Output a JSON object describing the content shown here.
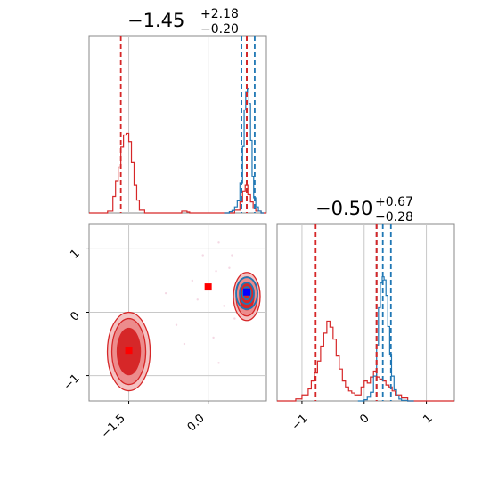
{
  "chart_data": {
    "type": "corner",
    "grid": true,
    "colors": {
      "red": "#d62728",
      "blue": "#1f77b4",
      "marker_red": "#ff0000",
      "marker_blue": "#0000ff",
      "grid": "#c8c8c8",
      "frame": "#888888"
    },
    "panels": {
      "hist_x": {
        "title": {
          "value": "−1.45",
          "sup": "+2.18",
          "sub": "−0.20"
        },
        "xlim": [
          -2.25,
          1.1
        ],
        "x_gridlines": [
          -1.5,
          0.0
        ],
        "red_quantile_lines": [
          -1.65,
          0.73
        ],
        "red_median_line": 0.73,
        "blue_quantile_lines": [
          0.63,
          0.88
        ],
        "blue_median_line": 0.73,
        "red_hist": {
          "bins": [
            -2.25,
            -1.9,
            -1.8,
            -1.75,
            -1.7,
            -1.65,
            -1.6,
            -1.55,
            -1.5,
            -1.45,
            -1.4,
            -1.35,
            -1.3,
            -1.2,
            -1.0,
            -0.5,
            -0.4,
            -0.35,
            -0.2,
            0.0,
            0.3,
            0.5,
            0.6,
            0.65,
            0.7,
            0.75,
            0.8,
            0.85,
            0.9,
            1.0,
            1.1
          ],
          "counts": [
            0,
            2,
            18,
            35,
            50,
            72,
            85,
            87,
            78,
            55,
            30,
            14,
            3,
            0,
            0,
            2,
            1,
            0,
            0,
            0,
            0,
            3,
            12,
            24,
            30,
            20,
            12,
            5,
            2,
            0
          ]
        },
        "blue_hist": {
          "bins": [
            0.3,
            0.4,
            0.45,
            0.5,
            0.55,
            0.6,
            0.65,
            0.68,
            0.71,
            0.74,
            0.77,
            0.8,
            0.83,
            0.86,
            0.9,
            0.95,
            1.0,
            1.05
          ],
          "counts": [
            0,
            2,
            4,
            10,
            20,
            50,
            110,
            170,
            200,
            205,
            180,
            120,
            60,
            25,
            10,
            3,
            0
          ]
        }
      },
      "hist_y": {
        "title": {
          "value": "−0.50",
          "sup": "+0.67",
          "sub": "−0.28"
        },
        "xlim": [
          -1.4,
          1.45
        ],
        "x_ticks": [
          -1,
          0,
          1
        ],
        "tick_labels": [
          "−1",
          "0",
          "1"
        ],
        "x_gridlines": [
          -1.0,
          0.0,
          1.0
        ],
        "red_quantile_lines": [
          -0.78,
          0.2
        ],
        "red_median_line": 0.2,
        "blue_quantile_lines": [
          0.2,
          0.43
        ],
        "blue_median_line": 0.3,
        "red_hist": {
          "bins": [
            -1.4,
            -1.1,
            -1.0,
            -0.9,
            -0.85,
            -0.8,
            -0.75,
            -0.7,
            -0.65,
            -0.6,
            -0.55,
            -0.5,
            -0.45,
            -0.4,
            -0.35,
            -0.3,
            -0.25,
            -0.2,
            -0.15,
            -0.1,
            -0.05,
            0.0,
            0.05,
            0.1,
            0.15,
            0.2,
            0.25,
            0.3,
            0.35,
            0.4,
            0.45,
            0.5,
            0.6,
            0.7,
            1.0,
            1.45
          ],
          "counts": [
            0,
            2,
            6,
            12,
            20,
            28,
            40,
            55,
            68,
            80,
            74,
            62,
            45,
            32,
            20,
            14,
            10,
            8,
            6,
            6,
            14,
            20,
            18,
            24,
            30,
            24,
            22,
            20,
            16,
            14,
            10,
            6,
            3,
            0,
            0
          ]
        },
        "blue_hist": {
          "bins": [
            -0.1,
            0.0,
            0.05,
            0.1,
            0.15,
            0.2,
            0.23,
            0.26,
            0.29,
            0.32,
            0.35,
            0.38,
            0.41,
            0.44,
            0.48,
            0.52,
            0.56,
            0.6,
            0.7,
            0.8
          ],
          "counts": [
            0,
            2,
            6,
            14,
            40,
            90,
            150,
            190,
            200,
            195,
            170,
            120,
            75,
            40,
            18,
            8,
            3,
            1,
            0
          ]
        }
      },
      "scatter_2d": {
        "xlim": [
          -2.25,
          1.1
        ],
        "ylim": [
          -1.4,
          1.4
        ],
        "x_ticks": [
          -1.5,
          0.0
        ],
        "x_tick_labels": [
          "−1.5",
          "0.0"
        ],
        "y_ticks": [
          -1,
          0,
          1
        ],
        "y_tick_labels": [
          "−1",
          "0",
          "1"
        ],
        "red_contour_centers": [
          [
            -1.5,
            -0.62
          ],
          [
            0.73,
            0.25
          ]
        ],
        "blue_contour_center": [
          0.73,
          0.3
        ],
        "red_markers": [
          [
            -1.5,
            -0.6
          ],
          [
            0.0,
            0.4
          ]
        ],
        "blue_marker": [
          0.73,
          0.32
        ]
      }
    }
  }
}
